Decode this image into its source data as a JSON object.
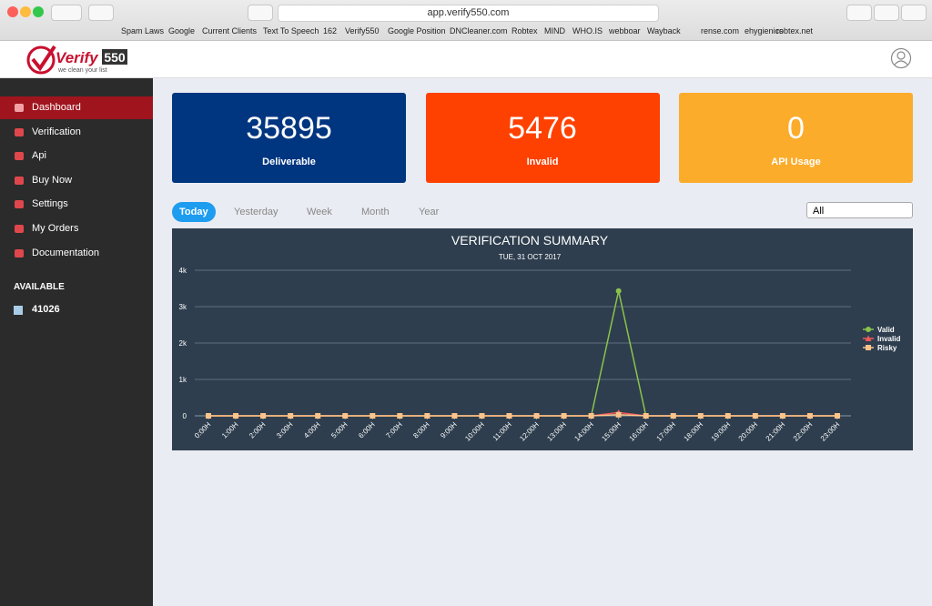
{
  "browser": {
    "url": "app.verify550.com",
    "bookmarks": [
      "Spam Laws",
      "Google",
      "Current Clients",
      "Text To Speech",
      "162",
      "Verify550",
      "Google Position",
      "DNCleaner.com",
      "Robtex",
      "MIND",
      "WHO.IS",
      "webboar",
      "Wayback",
      "rense.com",
      "ehygienics",
      "robtex.net"
    ]
  },
  "logo": {
    "name": "Verify",
    "number": "550",
    "tagline": "we clean your list"
  },
  "sidebar": {
    "items": [
      "Dashboard",
      "Verification",
      "Api",
      "Buy Now",
      "Settings",
      "My Orders",
      "Documentation"
    ],
    "available_label": "AVAILABLE",
    "available_value": "41026"
  },
  "cards": [
    {
      "value": "35895",
      "label": "Deliverable",
      "color": "#003580"
    },
    {
      "value": "5476",
      "label": "Invalid",
      "color": "#fe4100"
    },
    {
      "value": "0",
      "label": "API Usage",
      "color": "#fcac2b"
    }
  ],
  "tabs": [
    "Today",
    "Yesterday",
    "Week",
    "Month",
    "Year"
  ],
  "filter": "All",
  "chart_data": {
    "type": "line",
    "title": "VERIFICATION SUMMARY",
    "subtitle": "TUE, 31 OCT 2017",
    "categories": [
      "0:00H",
      "1:00H",
      "2:00H",
      "3:00H",
      "4:00H",
      "5:00H",
      "6:00H",
      "7:00H",
      "8:00H",
      "9:00H",
      "10:00H",
      "11:00H",
      "12:00H",
      "13:00H",
      "14:00H",
      "15:00H",
      "16:00H",
      "17:00H",
      "18:00H",
      "19:00H",
      "20:00H",
      "21:00H",
      "22:00H",
      "23:00H"
    ],
    "series": [
      {
        "name": "Valid",
        "color": "#8bc34a",
        "marker": "circle",
        "values": [
          0,
          0,
          0,
          0,
          0,
          0,
          0,
          0,
          0,
          0,
          0,
          0,
          0,
          0,
          0,
          3430,
          0,
          0,
          0,
          0,
          0,
          0,
          0,
          0
        ]
      },
      {
        "name": "Invalid",
        "color": "#f0585a",
        "marker": "triangle",
        "values": [
          0,
          0,
          0,
          0,
          0,
          0,
          0,
          0,
          0,
          0,
          0,
          0,
          0,
          0,
          0,
          90,
          0,
          0,
          0,
          0,
          0,
          0,
          0,
          0
        ]
      },
      {
        "name": "Risky",
        "color": "#fcc48a",
        "marker": "square",
        "values": [
          0,
          0,
          0,
          0,
          0,
          0,
          0,
          0,
          0,
          0,
          0,
          0,
          0,
          0,
          0,
          30,
          0,
          0,
          0,
          0,
          0,
          0,
          0,
          0
        ]
      }
    ],
    "ylim": [
      0,
      4000
    ],
    "yticks": [
      0,
      {
        "value": 1000,
        "label": "1k"
      },
      {
        "value": 2000,
        "label": "2k"
      },
      {
        "value": 3000,
        "label": "3k"
      },
      {
        "value": 4000,
        "label": "4k"
      }
    ],
    "grid": true,
    "legend": "right"
  }
}
